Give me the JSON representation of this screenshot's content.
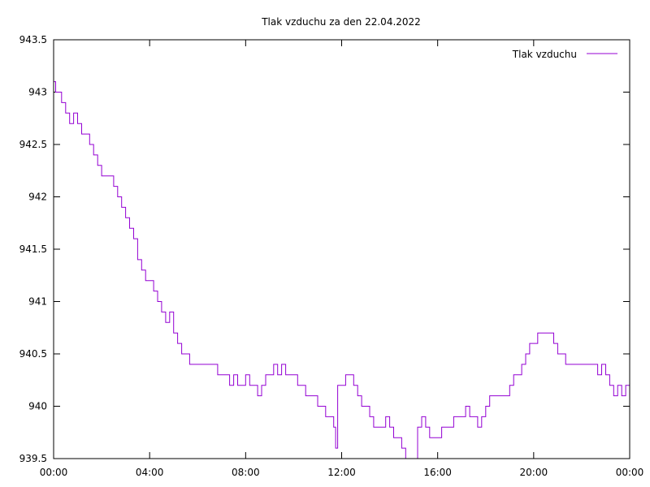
{
  "chart_data": {
    "type": "line",
    "title": "Tlak vzduchu za den 22.04.2022",
    "xlabel": "",
    "ylabel": "",
    "xlim_hours": [
      0,
      24
    ],
    "ylim": [
      939.5,
      943.5
    ],
    "x_ticks": [
      {
        "hour": 0,
        "label": "00:00"
      },
      {
        "hour": 4,
        "label": "04:00"
      },
      {
        "hour": 8,
        "label": "08:00"
      },
      {
        "hour": 12,
        "label": "12:00"
      },
      {
        "hour": 16,
        "label": "16:00"
      },
      {
        "hour": 20,
        "label": "20:00"
      },
      {
        "hour": 24,
        "label": "00:00"
      }
    ],
    "y_ticks": [
      {
        "value": 939.5,
        "label": "939.5"
      },
      {
        "value": 940,
        "label": "940"
      },
      {
        "value": 940.5,
        "label": "940.5"
      },
      {
        "value": 941,
        "label": "941"
      },
      {
        "value": 941.5,
        "label": "941.5"
      },
      {
        "value": 942,
        "label": "942"
      },
      {
        "value": 942.5,
        "label": "942.5"
      },
      {
        "value": 943,
        "label": "943"
      },
      {
        "value": 943.5,
        "label": "943.5"
      }
    ],
    "grid": false,
    "legend_position": "top-right",
    "series": [
      {
        "name": "Tlak vzduchu",
        "color": "#9400d3",
        "x": [
          "00:00",
          "00:05",
          "00:10",
          "00:20",
          "00:30",
          "00:40",
          "00:50",
          "01:00",
          "01:10",
          "01:20",
          "01:30",
          "01:40",
          "01:50",
          "02:00",
          "02:10",
          "02:20",
          "02:30",
          "02:40",
          "02:50",
          "03:00",
          "03:10",
          "03:20",
          "03:30",
          "03:40",
          "03:50",
          "04:00",
          "04:10",
          "04:20",
          "04:30",
          "04:40",
          "04:50",
          "05:00",
          "05:10",
          "05:20",
          "05:30",
          "05:40",
          "05:50",
          "06:00",
          "06:10",
          "06:20",
          "06:30",
          "06:40",
          "06:50",
          "07:00",
          "07:10",
          "07:20",
          "07:30",
          "07:40",
          "07:50",
          "08:00",
          "08:10",
          "08:20",
          "08:30",
          "08:40",
          "08:50",
          "09:00",
          "09:10",
          "09:20",
          "09:30",
          "09:40",
          "09:50",
          "10:00",
          "10:10",
          "10:20",
          "10:30",
          "10:40",
          "10:50",
          "11:00",
          "11:10",
          "11:20",
          "11:30",
          "11:40",
          "11:45",
          "11:50",
          "12:00",
          "12:10",
          "12:20",
          "12:30",
          "12:40",
          "12:50",
          "13:00",
          "13:10",
          "13:20",
          "13:30",
          "13:40",
          "13:50",
          "14:00",
          "14:10",
          "14:20",
          "14:30",
          "14:40",
          "14:50",
          "15:00",
          "15:10",
          "15:20",
          "15:30",
          "15:40",
          "15:50",
          "16:00",
          "16:10",
          "16:20",
          "16:30",
          "16:40",
          "16:50",
          "17:00",
          "17:10",
          "17:20",
          "17:30",
          "17:40",
          "17:50",
          "18:00",
          "18:10",
          "18:20",
          "18:30",
          "18:40",
          "18:50",
          "19:00",
          "19:10",
          "19:20",
          "19:30",
          "19:40",
          "19:50",
          "20:00",
          "20:10",
          "20:20",
          "20:30",
          "20:40",
          "20:50",
          "21:00",
          "21:10",
          "21:20",
          "21:30",
          "21:40",
          "21:50",
          "22:00",
          "22:10",
          "22:20",
          "22:30",
          "22:40",
          "22:50",
          "23:00",
          "23:10",
          "23:20",
          "23:30",
          "23:40",
          "23:50",
          "24:00"
        ],
        "values": [
          943.1,
          943.0,
          943.0,
          942.9,
          942.8,
          942.7,
          942.8,
          942.7,
          942.6,
          942.6,
          942.5,
          942.4,
          942.3,
          942.2,
          942.2,
          942.2,
          942.1,
          942.0,
          941.9,
          941.8,
          941.7,
          941.6,
          941.4,
          941.3,
          941.2,
          941.2,
          941.1,
          941.0,
          940.9,
          940.8,
          940.9,
          940.7,
          940.6,
          940.5,
          940.5,
          940.4,
          940.4,
          940.4,
          940.4,
          940.4,
          940.4,
          940.4,
          940.3,
          940.3,
          940.3,
          940.2,
          940.3,
          940.2,
          940.2,
          940.3,
          940.2,
          940.2,
          940.1,
          940.2,
          940.3,
          940.3,
          940.4,
          940.3,
          940.4,
          940.3,
          940.3,
          940.3,
          940.2,
          940.2,
          940.1,
          940.1,
          940.1,
          940.0,
          940.0,
          939.9,
          939.9,
          939.8,
          939.6,
          940.2,
          940.2,
          940.3,
          940.3,
          940.2,
          940.1,
          940.0,
          940.0,
          939.9,
          939.8,
          939.8,
          939.8,
          939.9,
          939.8,
          939.7,
          939.7,
          939.6,
          939.5,
          939.5,
          939.5,
          939.8,
          939.9,
          939.8,
          939.7,
          939.7,
          939.7,
          939.8,
          939.8,
          939.8,
          939.9,
          939.9,
          939.9,
          940.0,
          939.9,
          939.9,
          939.8,
          939.9,
          940.0,
          940.1,
          940.1,
          940.1,
          940.1,
          940.1,
          940.2,
          940.3,
          940.3,
          940.4,
          940.5,
          940.6,
          940.6,
          940.7,
          940.7,
          940.7,
          940.7,
          940.6,
          940.5,
          940.5,
          940.4,
          940.4,
          940.4,
          940.4,
          940.4,
          940.4,
          940.4,
          940.4,
          940.3,
          940.4,
          940.3,
          940.2,
          940.1,
          940.2,
          940.1,
          940.2,
          940.3
        ]
      }
    ]
  }
}
